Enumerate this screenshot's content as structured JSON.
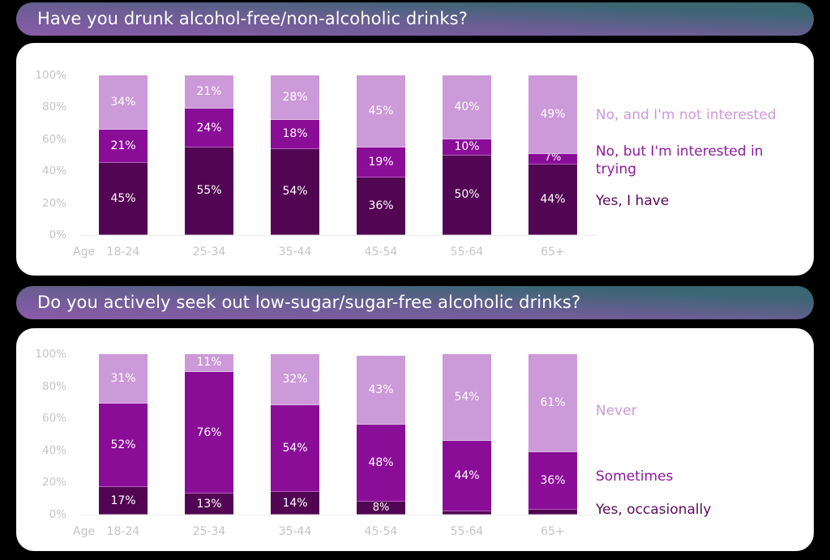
{
  "colors": {
    "yes": "#520552",
    "middle": "#8a0d98",
    "no": "#cc99d9",
    "legend_yes": "#5a0a5c",
    "legend_middle": "#8e1a9e",
    "legend_no": "#cc99d9"
  },
  "axis": {
    "age_label": "Age",
    "yticks": [
      "100%",
      "80%",
      "60%",
      "40%",
      "20%",
      "0%"
    ]
  },
  "chart_data": [
    {
      "type": "bar",
      "stacked": true,
      "title": "Have you drunk alcohol-free/non-alcoholic drinks?",
      "xlabel": "Age",
      "ylabel": "",
      "ylim": [
        0,
        100
      ],
      "yticks": [
        "0%",
        "20%",
        "40%",
        "60%",
        "80%",
        "100%"
      ],
      "categories": [
        "18-24",
        "25-34",
        "35-44",
        "45-54",
        "55-64",
        "65+"
      ],
      "series": [
        {
          "name": "Yes, I have",
          "values": [
            45,
            55,
            54,
            36,
            50,
            44
          ],
          "labels": [
            "45%",
            "55%",
            "54%",
            "36%",
            "50%",
            "44%"
          ]
        },
        {
          "name": "No, but I'm interested in trying",
          "values": [
            21,
            24,
            18,
            19,
            10,
            7
          ],
          "labels": [
            "21%",
            "24%",
            "18%",
            "19%",
            "10%",
            "7%"
          ]
        },
        {
          "name": "No, and I'm not interested",
          "values": [
            34,
            21,
            28,
            45,
            40,
            49
          ],
          "labels": [
            "34%",
            "21%",
            "28%",
            "45%",
            "40%",
            "49%"
          ]
        }
      ],
      "legend": [
        "No, and I'm not interested",
        "No, but I'm interested in trying",
        "Yes, I have"
      ],
      "legend_position": "right",
      "grid": false
    },
    {
      "type": "bar",
      "stacked": true,
      "title": "Do you actively seek out low-sugar/sugar-free alcoholic drinks?",
      "xlabel": "Age",
      "ylabel": "",
      "ylim": [
        0,
        100
      ],
      "yticks": [
        "0%",
        "20%",
        "40%",
        "60%",
        "80%",
        "100%"
      ],
      "categories": [
        "18-24",
        "25-34",
        "35-44",
        "45-54",
        "55-64",
        "65+"
      ],
      "series": [
        {
          "name": "Yes, occasionally",
          "values": [
            17,
            13,
            14,
            8,
            2,
            3
          ],
          "labels": [
            "17%",
            "13%",
            "14%",
            "8%",
            "",
            ""
          ]
        },
        {
          "name": "Sometimes",
          "values": [
            52,
            76,
            54,
            48,
            44,
            36
          ],
          "labels": [
            "52%",
            "76%",
            "54%",
            "48%",
            "44%",
            "36%"
          ]
        },
        {
          "name": "Never",
          "values": [
            31,
            11,
            32,
            43,
            54,
            61
          ],
          "labels": [
            "31%",
            "11%",
            "32%",
            "43%",
            "54%",
            "61%"
          ]
        }
      ],
      "legend": [
        "Never",
        "Sometimes",
        "Yes, occasionally"
      ],
      "legend_position": "right",
      "grid": false
    }
  ],
  "sections": [
    {
      "title": "Have you drunk alcohol-free/non-alcoholic drinks?",
      "legend": [
        {
          "label": "No, and I'm not interested"
        },
        {
          "label": "No, but I'm interested in trying"
        },
        {
          "label": "Yes, I have"
        }
      ]
    },
    {
      "title": "Do you actively seek out low-sugar/sugar-free alcoholic drinks?",
      "legend": [
        {
          "label": "Never"
        },
        {
          "label": "Sometimes"
        },
        {
          "label": "Yes, occasionally"
        }
      ]
    }
  ]
}
